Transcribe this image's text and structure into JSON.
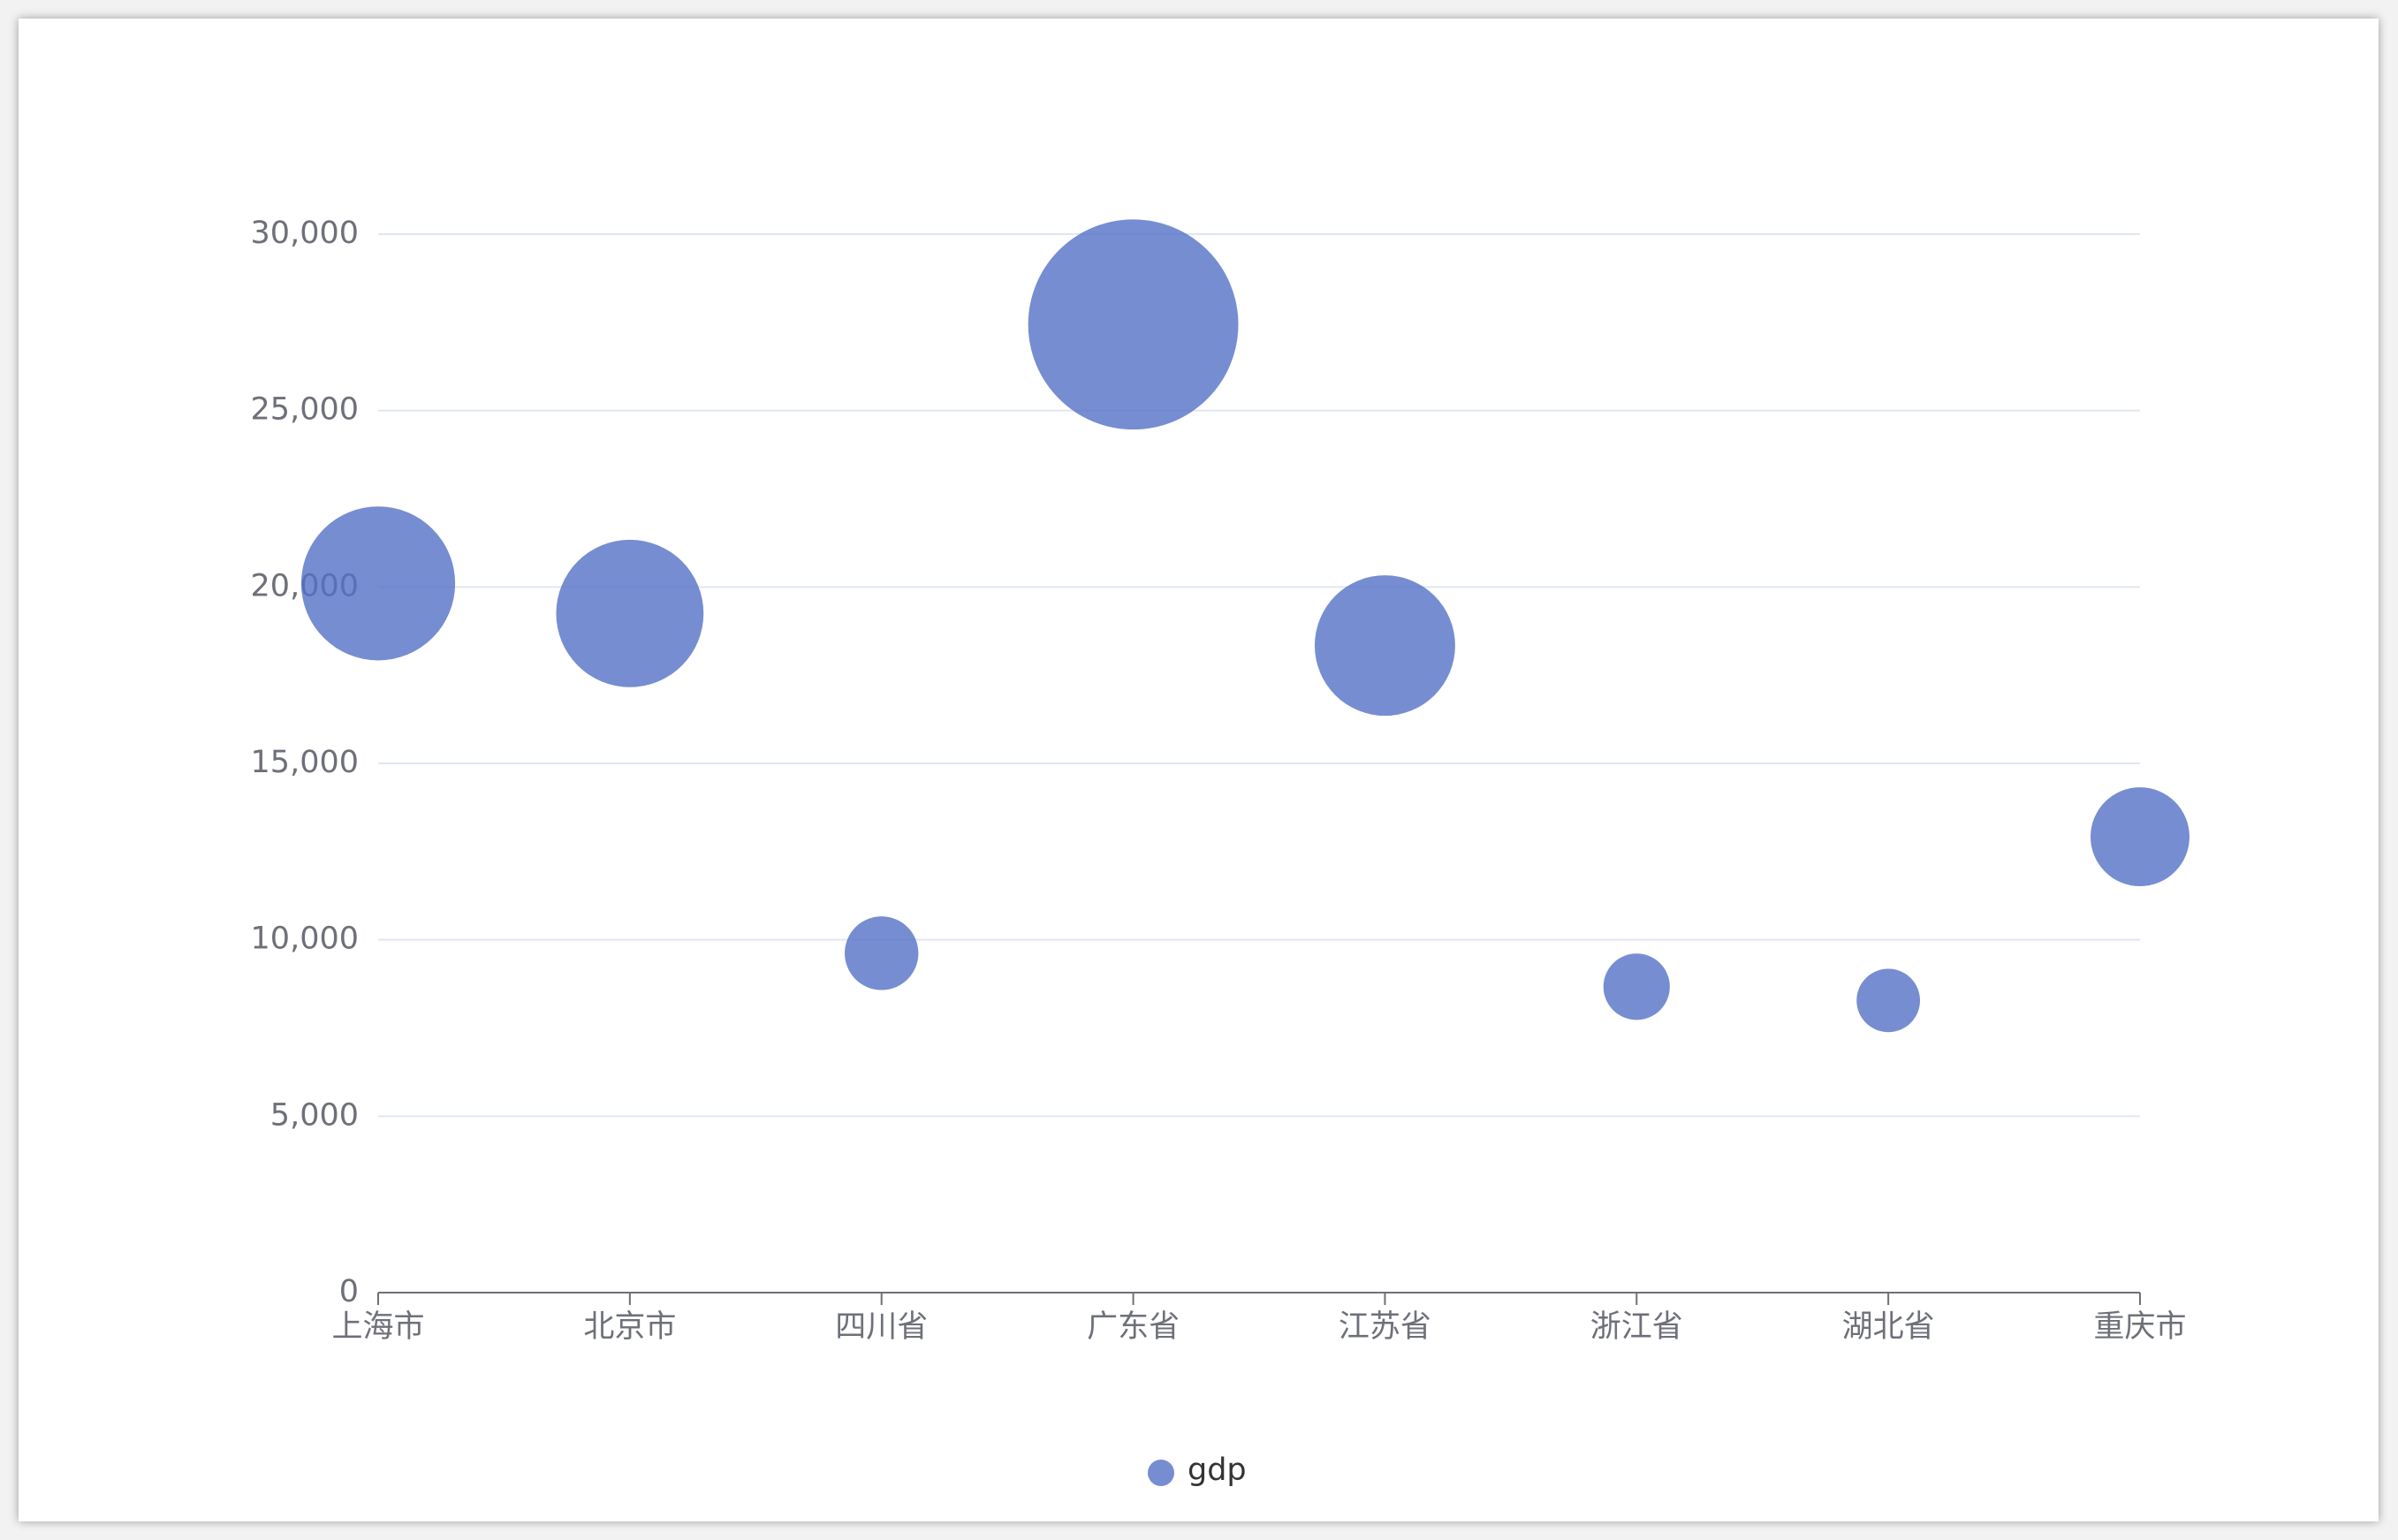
{
  "chart_data": {
    "type": "bubble",
    "categories": [
      "上海市",
      "北京市",
      "四川省",
      "广东省",
      "江苏省",
      "浙江省",
      "湖北省",
      "重庆市"
    ],
    "series": [
      {
        "name": "gdp",
        "color": "#5470c6",
        "values": [
          20100,
          19250,
          9620,
          27440,
          18340,
          8670,
          8280,
          12920
        ]
      }
    ],
    "ylim": [
      0,
      30000
    ],
    "yticks": [
      0,
      {
        "value": 5000,
        "label": "5,000"
      },
      {
        "value": 10000,
        "label": "10,000"
      },
      {
        "value": 15000,
        "label": "15,000"
      },
      {
        "value": 20000,
        "label": "20,000"
      },
      {
        "value": 25000,
        "label": "25,000"
      },
      {
        "value": 30000,
        "label": "30,000"
      }
    ],
    "grid": true,
    "legend": "bottom"
  }
}
